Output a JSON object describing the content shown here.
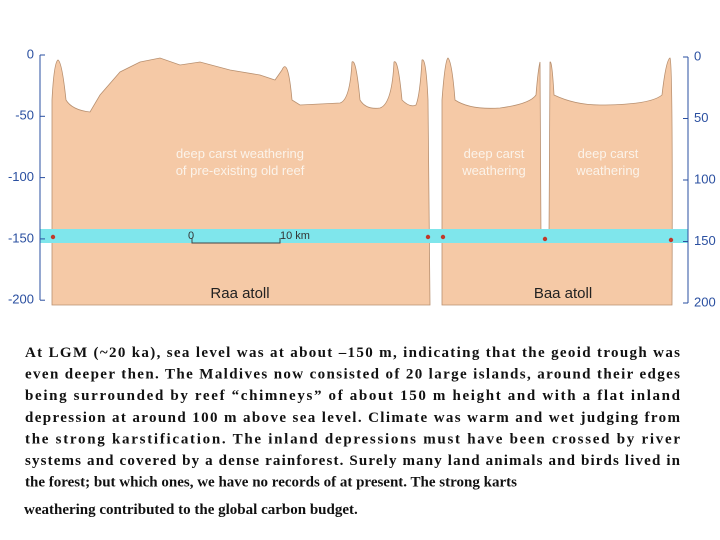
{
  "figure": {
    "left_axis": [
      "0",
      "-50",
      "-100",
      "-150",
      "-200"
    ],
    "right_axis": [
      "0",
      "50",
      "100",
      "150",
      "200"
    ],
    "raa_weathering": [
      "deep carst weathering",
      "of pre-existing old reef"
    ],
    "baa_left_weathering": [
      "deep carst",
      "weathering"
    ],
    "baa_right_weathering": [
      "deep carst",
      "weathering"
    ],
    "scale_start": "0",
    "scale_end": "10 km",
    "raa_label": "Raa atoll",
    "baa_label": "Baa atoll"
  },
  "caption": [
    "At LGM (~20 ka), sea level was at about –150 m, indicating that the geoid trough was",
    "even deeper then. The Maldives now consisted of 20 large islands, around their edges",
    "being surrounded by reef “chimneys” of about 150 m height and with a flat inland",
    "depression at around 100 m above sea level. Climate was warm and wet judging from",
    "the strong karstification. The inland depressions must have been crossed by river",
    "systems and covered by a dense rainforest. Surely many land animals and birds lived in",
    "the forest; but which ones, we have no records of at present. The strong karts",
    "weathering contributed to the global carbon budget."
  ]
}
